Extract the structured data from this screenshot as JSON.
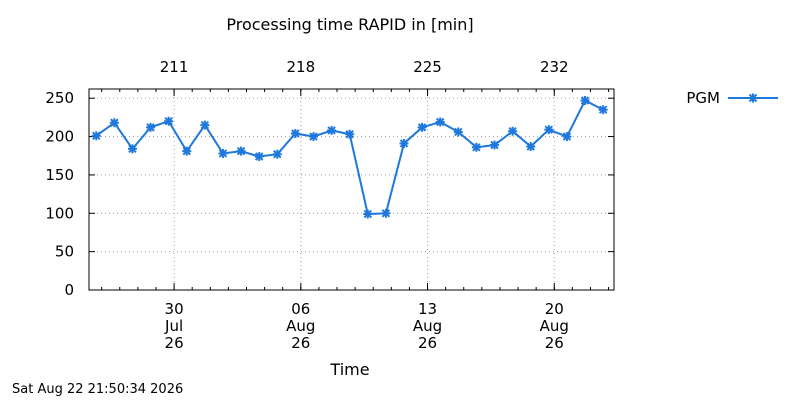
{
  "chart_data": {
    "type": "line",
    "title": "Processing time RAPID in [min]",
    "xlabel": "Time",
    "ylabel": "",
    "ylim": [
      0,
      262
    ],
    "y_ticks": [
      0,
      50,
      100,
      150,
      200,
      250
    ],
    "x_ticks_bottom": [
      {
        "day": 30,
        "lines": [
          "30",
          "Jul",
          "26"
        ]
      },
      {
        "day": 37,
        "lines": [
          "06",
          "Aug",
          "26"
        ]
      },
      {
        "day": 44,
        "lines": [
          "13",
          "Aug",
          "26"
        ]
      },
      {
        "day": 51,
        "lines": [
          "20",
          "Aug",
          "26"
        ]
      }
    ],
    "x_ticks_top": [
      {
        "day": 30,
        "label": "211"
      },
      {
        "day": 37,
        "label": "218"
      },
      {
        "day": 44,
        "label": "225"
      },
      {
        "day": 51,
        "label": "232"
      }
    ],
    "xlim_days": [
      25.3,
      54.3
    ],
    "grid": true,
    "legend": "right",
    "color": "#1f78dc",
    "series": [
      {
        "name": "PGM",
        "x_days": [
          25.7,
          26.7,
          27.7,
          28.7,
          29.7,
          30.7,
          31.7,
          32.7,
          33.7,
          34.7,
          35.7,
          36.7,
          37.7,
          38.7,
          39.7,
          40.7,
          41.7,
          42.7,
          43.7,
          44.7,
          45.7,
          46.7,
          47.7,
          48.7,
          49.7,
          50.7,
          51.7,
          52.7,
          53.7
        ],
        "values": [
          201,
          218,
          184,
          212,
          220,
          181,
          215,
          178,
          181,
          174,
          177,
          204,
          200,
          208,
          203,
          99,
          100,
          191,
          212,
          219,
          206,
          186,
          189,
          207,
          187,
          209,
          200,
          247,
          235
        ]
      }
    ]
  },
  "timestamp": "Sat Aug 22 21:50:34 2026"
}
